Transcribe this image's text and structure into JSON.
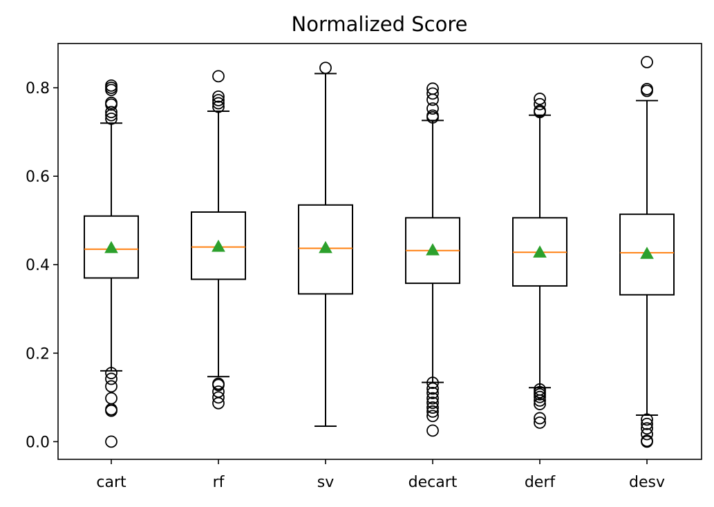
{
  "chart_data": {
    "type": "box",
    "title": "Normalized Score",
    "xlabel": "",
    "ylabel": "",
    "ylim": [
      -0.04,
      0.9
    ],
    "yticks": [
      0.0,
      0.2,
      0.4,
      0.6,
      0.8
    ],
    "ytick_labels": [
      "0.0",
      "0.2",
      "0.4",
      "0.6",
      "0.8"
    ],
    "grid": false,
    "legend": "none",
    "colors": {
      "box": "#000000",
      "median": "#ff7f0e",
      "mean_marker": "#2ca02c",
      "outlier": "#000000",
      "background": "#ffffff"
    },
    "categories": [
      "cart",
      "rf",
      "sv",
      "decart",
      "derf",
      "desv"
    ],
    "boxes": [
      {
        "label": "cart",
        "whisker_low": 0.16,
        "q1": 0.37,
        "median": 0.435,
        "q3": 0.51,
        "whisker_high": 0.72,
        "mean": 0.437,
        "outliers": [
          0.0,
          0.07,
          0.073,
          0.098,
          0.125,
          0.142,
          0.155,
          0.73,
          0.738,
          0.745,
          0.762,
          0.766,
          0.795,
          0.8,
          0.805
        ]
      },
      {
        "label": "rf",
        "whisker_low": 0.147,
        "q1": 0.367,
        "median": 0.44,
        "q3": 0.519,
        "whisker_high": 0.747,
        "mean": 0.44,
        "outliers": [
          0.087,
          0.1,
          0.113,
          0.128,
          0.131,
          0.757,
          0.765,
          0.772,
          0.78,
          0.826
        ]
      },
      {
        "label": "sv",
        "whisker_low": 0.035,
        "q1": 0.334,
        "median": 0.437,
        "q3": 0.535,
        "whisker_high": 0.832,
        "mean": 0.437,
        "outliers": [
          0.845
        ]
      },
      {
        "label": "decart",
        "whisker_low": 0.134,
        "q1": 0.358,
        "median": 0.432,
        "q3": 0.506,
        "whisker_high": 0.726,
        "mean": 0.432,
        "outliers": [
          0.025,
          0.058,
          0.068,
          0.077,
          0.088,
          0.098,
          0.11,
          0.12,
          0.133,
          0.733,
          0.737,
          0.753,
          0.773,
          0.787,
          0.798
        ]
      },
      {
        "label": "derf",
        "whisker_low": 0.122,
        "q1": 0.352,
        "median": 0.428,
        "q3": 0.506,
        "whisker_high": 0.738,
        "mean": 0.427,
        "outliers": [
          0.043,
          0.053,
          0.085,
          0.093,
          0.101,
          0.107,
          0.112,
          0.118,
          0.745,
          0.748,
          0.763,
          0.775
        ]
      },
      {
        "label": "desv",
        "whisker_low": 0.06,
        "q1": 0.332,
        "median": 0.427,
        "q3": 0.514,
        "whisker_high": 0.771,
        "mean": 0.424,
        "outliers": [
          0.0,
          0.002,
          0.017,
          0.03,
          0.04,
          0.05,
          0.793,
          0.797,
          0.858
        ]
      }
    ]
  }
}
